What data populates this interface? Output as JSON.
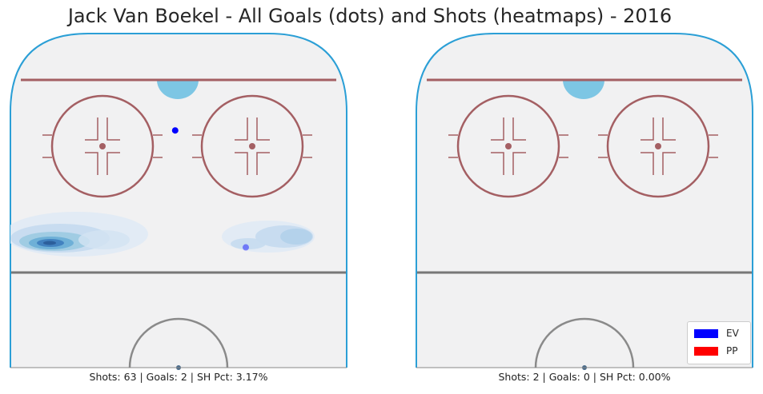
{
  "title": "Jack Van Boekel - All Goals (dots) and Shots (heatmaps) - 2016",
  "legend": [
    {
      "label": "EV",
      "color": "#0000ff"
    },
    {
      "label": "PP",
      "color": "#ff0000"
    }
  ],
  "colors": {
    "ice": "#f1f1f2",
    "boards": "#2b9fd6",
    "goal_line": "#a45f63",
    "circle": "#a45f63",
    "blue_line": "#777777",
    "crease": "#7dc6e4",
    "center_circle": "#8a8a8a",
    "heat_low": "#c6dbef",
    "heat_high": "#2b5d9a"
  },
  "chart_data": [
    {
      "type": "heatmap",
      "panel": "left",
      "caption": "Shots: 63 | Goals: 2 | SH Pct: 3.17%",
      "shots": 63,
      "goals": 2,
      "sh_pct": "3.17%",
      "goal_points": [
        {
          "strength": "EV",
          "x": 0.49,
          "y": 0.29,
          "opacity": 1.0
        },
        {
          "strength": "EV",
          "x": 0.7,
          "y": 0.64,
          "opacity": 0.45
        }
      ]
    },
    {
      "type": "heatmap",
      "panel": "right",
      "caption": "Shots: 2 | Goals: 0 | SH Pct: 0.00%",
      "shots": 2,
      "goals": 0,
      "sh_pct": "0.00%",
      "goal_points": []
    }
  ]
}
